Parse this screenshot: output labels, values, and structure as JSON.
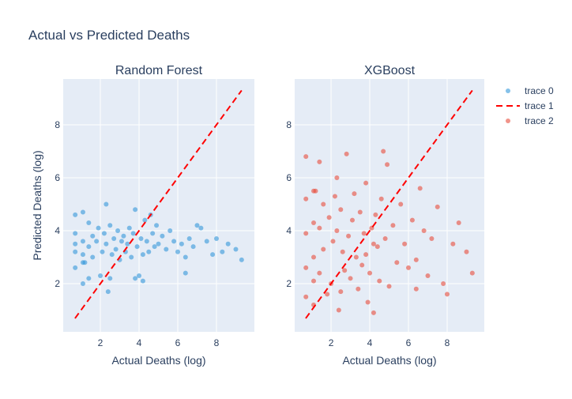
{
  "chart_data": {
    "type": "scatter",
    "title": "Actual vs Predicted Deaths",
    "y_label": "Predicted Deaths (log)",
    "ylim": [
      0.18,
      9.73
    ],
    "yticks": [
      2,
      4,
      6,
      8
    ],
    "grid": true,
    "legend": "right",
    "subplots": [
      {
        "subtitle": "Random Forest",
        "x_label": "Actual Deaths (log)",
        "xlim": [
          0.08,
          9.96
        ],
        "xticks": [
          2,
          4,
          6,
          8
        ],
        "series": [
          {
            "name": "trace 0",
            "mode": "markers",
            "color": "#3498db",
            "x": [
              0.7,
              0.7,
              0.7,
              0.7,
              0.7,
              1.1,
              1.1,
              1.1,
              1.1,
              1.1,
              1.4,
              1.4,
              1.4,
              1.6,
              1.6,
              1.8,
              1.9,
              2.0,
              2.1,
              2.2,
              2.3,
              2.4,
              2.5,
              2.6,
              2.7,
              2.8,
              2.9,
              3.0,
              3.1,
              3.2,
              3.3,
              3.4,
              3.5,
              3.6,
              3.7,
              3.8,
              3.9,
              4.0,
              4.1,
              4.2,
              4.3,
              4.4,
              4.5,
              4.6,
              4.7,
              4.8,
              4.9,
              5.0,
              5.2,
              5.4,
              5.6,
              5.8,
              6.0,
              6.2,
              6.4,
              6.6,
              6.8,
              7.0,
              7.2,
              7.5,
              7.8,
              8.0,
              8.3,
              8.6,
              9.0,
              9.3,
              2.3,
              2.5,
              3.8,
              4.2,
              1.2,
              6.4
            ],
            "values": [
              4.6,
              3.9,
              3.2,
              2.6,
              3.5,
              4.7,
              3.6,
              2.8,
              3.1,
              2.0,
              4.3,
              3.4,
              2.2,
              3.8,
              3.0,
              3.6,
              4.1,
              2.3,
              3.2,
              3.9,
              3.5,
              1.7,
              4.2,
              3.1,
              3.7,
              3.3,
              4.0,
              2.9,
              3.6,
              3.8,
              3.2,
              3.5,
              4.1,
              3.0,
              3.9,
              4.8,
              3.4,
              2.3,
              3.7,
              3.1,
              4.4,
              3.6,
              3.2,
              4.6,
              3.9,
              3.4,
              4.2,
              3.5,
              3.8,
              3.3,
              4.0,
              3.6,
              3.2,
              3.5,
              2.4,
              3.7,
              3.4,
              4.2,
              4.1,
              3.6,
              3.1,
              3.7,
              3.2,
              3.5,
              3.3,
              2.9,
              5.0,
              2.2,
              2.2,
              2.1,
              2.8,
              3.0
            ]
          },
          {
            "name": "trace 1",
            "mode": "dash",
            "color": "#ff0000",
            "x": [
              0.69,
              9.3
            ],
            "values": [
              0.69,
              9.3
            ]
          }
        ]
      },
      {
        "subtitle": "XGBoost",
        "x_label": "Actual Deaths (log)",
        "xlim": [
          0.12,
          9.92
        ],
        "xticks": [
          2,
          4,
          6,
          8
        ],
        "series": [
          {
            "name": "trace 2",
            "mode": "markers",
            "color": "#e74c3c",
            "x": [
              0.7,
              0.7,
              0.7,
              0.7,
              0.7,
              1.1,
              1.1,
              1.1,
              1.1,
              1.1,
              1.4,
              1.4,
              1.4,
              1.6,
              1.6,
              1.8,
              1.9,
              2.0,
              2.1,
              2.2,
              2.3,
              2.4,
              2.5,
              2.6,
              2.7,
              2.8,
              2.9,
              3.0,
              3.1,
              3.2,
              3.3,
              3.4,
              3.5,
              3.6,
              3.7,
              3.8,
              3.9,
              4.0,
              4.1,
              4.2,
              4.3,
              4.4,
              4.5,
              4.6,
              4.7,
              4.8,
              4.9,
              5.0,
              5.2,
              5.4,
              5.6,
              5.8,
              6.0,
              6.2,
              6.4,
              6.6,
              6.8,
              7.0,
              7.2,
              7.5,
              7.8,
              8.0,
              8.3,
              8.6,
              9.0,
              9.3,
              2.3,
              2.5,
              3.8,
              4.2,
              1.2,
              6.4
            ],
            "values": [
              6.8,
              5.2,
              3.9,
              2.6,
              1.5,
              5.5,
              4.3,
              3.0,
              2.1,
              1.2,
              6.6,
              4.1,
              2.4,
              5.0,
              3.3,
              1.6,
              4.5,
              2.0,
              3.6,
              5.3,
              4.0,
              1.0,
              4.8,
              3.2,
              2.5,
              6.9,
              3.8,
              2.2,
              4.4,
              5.4,
              3.0,
              1.8,
              4.7,
              2.7,
              3.9,
              5.8,
              1.3,
              2.4,
              4.1,
              0.9,
              4.6,
              3.4,
              2.1,
              5.2,
              7.0,
              3.7,
              6.5,
              1.9,
              4.2,
              2.8,
              5.0,
              3.5,
              2.6,
              4.4,
              1.8,
              5.6,
              4.0,
              2.3,
              3.7,
              4.9,
              2.0,
              1.6,
              3.5,
              4.3,
              3.2,
              2.4,
              6.0,
              1.7,
              3.1,
              3.5,
              5.5,
              2.9
            ]
          },
          {
            "mode": "dash",
            "color": "#ff0000",
            "x": [
              0.69,
              9.3
            ],
            "values": [
              0.69,
              9.3
            ]
          }
        ]
      }
    ]
  }
}
